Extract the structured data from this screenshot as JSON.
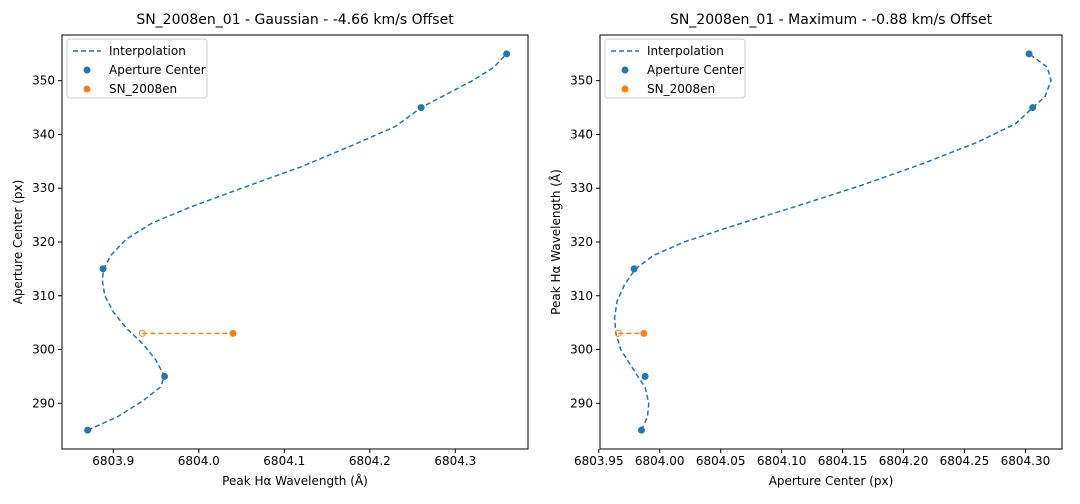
{
  "chart_data": [
    {
      "type": "scatter",
      "title": "SN_2008en_01 - Gaussian - -4.66 km/s Offset",
      "xlabel": "Peak Hα Wavelength (Å)",
      "ylabel": "Aperture Center (px)",
      "xlim": [
        6803.84,
        6804.385
      ],
      "ylim": [
        281.5,
        358.5
      ],
      "x_ticks": [
        6803.9,
        6804.0,
        6804.1,
        6804.2,
        6804.3
      ],
      "x_tick_labels": [
        "6803.9",
        "6804.0",
        "6804.1",
        "6804.2",
        "6804.3"
      ],
      "y_ticks": [
        290,
        300,
        310,
        320,
        330,
        340,
        350
      ],
      "y_tick_labels": [
        "290",
        "300",
        "310",
        "320",
        "330",
        "340",
        "350"
      ],
      "grid": false,
      "legend_placement": "upper-left",
      "series": [
        {
          "name": "Interpolation",
          "kind": "line-dashed",
          "color": "#1f77b4",
          "x": [
            6803.87,
            6803.905,
            6803.935,
            6803.955,
            6803.96,
            6803.95,
            6803.935,
            6803.915,
            6803.9,
            6803.89,
            6803.887,
            6803.889,
            6803.897,
            6803.915,
            6803.945,
            6803.99,
            6804.05,
            6804.12,
            6804.18,
            6804.23,
            6804.26,
            6804.29,
            6804.32,
            6804.345,
            6804.36
          ],
          "y": [
            285,
            287.5,
            290.5,
            293,
            295,
            298,
            301,
            304,
            307,
            310,
            313,
            315,
            317.5,
            320.5,
            323.5,
            326.5,
            330,
            334,
            338,
            341.5,
            345,
            347.5,
            350,
            352.5,
            355
          ]
        },
        {
          "name": "Aperture Center",
          "kind": "points",
          "color": "#1f77b4",
          "x": [
            6803.87,
            6803.96,
            6803.888,
            6804.26,
            6804.36
          ],
          "y": [
            285,
            295,
            315,
            345,
            355
          ]
        },
        {
          "name": "SN_2008en",
          "kind": "points",
          "color": "#ff7f0e",
          "x": [
            6804.04
          ],
          "y": [
            303
          ]
        }
      ],
      "offset_line": {
        "color": "#ff7f0e",
        "x": [
          6803.934,
          6804.04
        ],
        "y": [
          303,
          303
        ]
      }
    },
    {
      "type": "scatter",
      "title": "SN_2008en_01 - Maximum - -0.88 km/s Offset",
      "xlabel": "Aperture Center (px)",
      "ylabel": "Peak Hα Wavelength (Å)",
      "xlim": [
        6803.951,
        6804.33
      ],
      "ylim": [
        281.5,
        358.5
      ],
      "x_ticks": [
        6803.95,
        6804.0,
        6804.05,
        6804.1,
        6804.15,
        6804.2,
        6804.25,
        6804.3
      ],
      "x_tick_labels": [
        "6803.95",
        "6804.00",
        "6804.05",
        "6804.10",
        "6804.15",
        "6804.20",
        "6804.25",
        "6804.30"
      ],
      "y_ticks": [
        290,
        300,
        310,
        320,
        330,
        340,
        350
      ],
      "y_tick_labels": [
        "290",
        "300",
        "310",
        "320",
        "330",
        "340",
        "350"
      ],
      "grid": false,
      "legend_placement": "upper-left",
      "series": [
        {
          "name": "Interpolation",
          "kind": "line-dashed",
          "color": "#1f77b4",
          "x": [
            6803.985,
            6803.99,
            6803.991,
            6803.988,
            6803.982,
            6803.975,
            6803.968,
            6803.964,
            6803.963,
            6803.965,
            6803.971,
            6803.98,
            6803.995,
            6804.02,
            6804.06,
            6804.11,
            6804.165,
            6804.215,
            6804.26,
            6804.292,
            6804.306,
            6804.316,
            6804.321,
            6804.318,
            6804.303
          ],
          "y": [
            285,
            287.5,
            290,
            293,
            295,
            297.5,
            300,
            303,
            306,
            309,
            312,
            315,
            317.5,
            320,
            323,
            326.5,
            330.5,
            334.5,
            338.5,
            342,
            345,
            347,
            350,
            352.5,
            355
          ]
        },
        {
          "name": "Aperture Center",
          "kind": "points",
          "color": "#1f77b4",
          "x": [
            6803.985,
            6803.988,
            6803.979,
            6804.306,
            6804.303
          ],
          "y": [
            285,
            295,
            315,
            345,
            355
          ]
        },
        {
          "name": "SN_2008en",
          "kind": "points",
          "color": "#ff7f0e",
          "x": [
            6803.987
          ],
          "y": [
            303
          ]
        }
      ],
      "offset_line": {
        "color": "#ff7f0e",
        "x": [
          6803.966,
          6803.987
        ],
        "y": [
          303,
          303
        ]
      }
    }
  ]
}
